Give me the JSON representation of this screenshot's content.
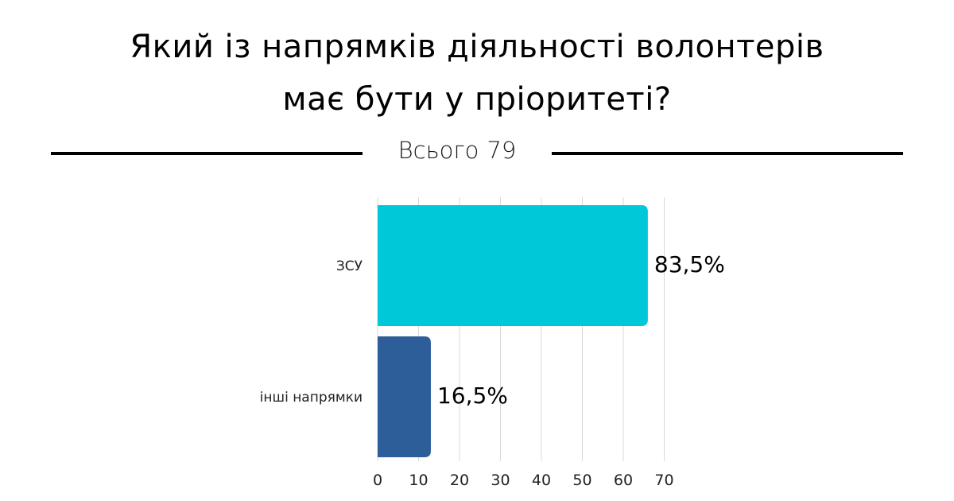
{
  "header": {
    "title_line1": "Який із напрямків діяльності волонтерів",
    "title_line2": "має бути у пріоритеті?",
    "total_label": "Всього",
    "total_value": "79"
  },
  "chart_data": {
    "type": "bar",
    "orientation": "horizontal",
    "categories": [
      "ЗСУ",
      "інші напрямки"
    ],
    "values": [
      66,
      13
    ],
    "data_labels": [
      "83,5%",
      "16,5%"
    ],
    "colors": [
      "#00c8d8",
      "#2e5e99"
    ],
    "xlim": [
      0,
      70
    ],
    "xticks": [
      0,
      10,
      20,
      30,
      40,
      50,
      60,
      70
    ],
    "grid": true,
    "legend": "none"
  }
}
